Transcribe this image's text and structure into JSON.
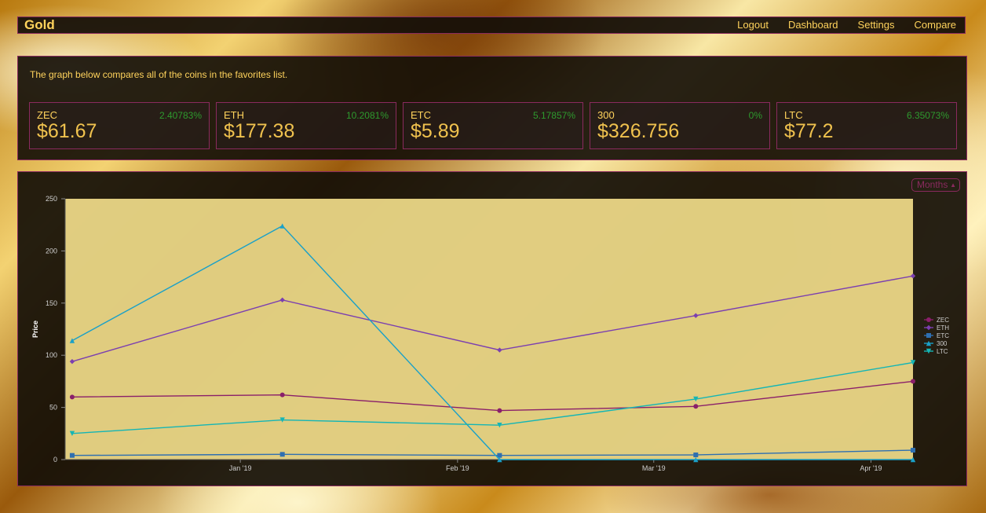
{
  "nav": {
    "brand": "Gold",
    "links": [
      "Logout",
      "Dashboard",
      "Settings",
      "Compare"
    ]
  },
  "intro": "The graph below compares all of the coins in the favorites list.",
  "tiles": [
    {
      "symbol": "ZEC",
      "change": "2.40783%",
      "price": "$61.67"
    },
    {
      "symbol": "ETH",
      "change": "10.2081%",
      "price": "$177.38"
    },
    {
      "symbol": "ETC",
      "change": "5.17857%",
      "price": "$5.89"
    },
    {
      "symbol": "300",
      "change": "0%",
      "price": "$326.756"
    },
    {
      "symbol": "LTC",
      "change": "6.35073%",
      "price": "$77.2"
    }
  ],
  "range_select": {
    "value": "Months"
  },
  "colors": {
    "accent": "#ffd35c",
    "border": "#8a2a5e",
    "positive": "#2e9a2e",
    "plot_bg": "#f1dc8a"
  },
  "chart_data": {
    "type": "line",
    "ylabel": "Price",
    "ylim": [
      0,
      250
    ],
    "yticks": [
      0,
      50,
      100,
      150,
      200,
      250
    ],
    "xticks": [
      {
        "label": "Jan '19",
        "x": "2019-01-01"
      },
      {
        "label": "Feb '19",
        "x": "2019-02-01"
      },
      {
        "label": "Mar '19",
        "x": "2019-03-01"
      },
      {
        "label": "Apr '19",
        "x": "2019-04-01"
      }
    ],
    "xlim": [
      "2018-12-07",
      "2019-04-07"
    ],
    "x": [
      "2018-12-08",
      "2019-01-07",
      "2019-02-07",
      "2019-03-07",
      "2019-04-07"
    ],
    "grid": false,
    "legend": "right",
    "series": [
      {
        "name": "ZEC",
        "color": "#8a1f6a",
        "marker": "circle",
        "values": [
          60,
          62,
          47,
          51,
          75
        ]
      },
      {
        "name": "ETH",
        "color": "#7b3fb0",
        "marker": "diamond",
        "values": [
          94,
          153,
          105,
          138,
          176
        ]
      },
      {
        "name": "ETC",
        "color": "#2f6fb0",
        "marker": "square",
        "values": [
          4,
          5,
          4,
          4.5,
          9
        ]
      },
      {
        "name": "300",
        "color": "#1aa0c8",
        "marker": "triangle-up",
        "values": [
          114,
          224,
          0,
          0,
          0
        ]
      },
      {
        "name": "LTC",
        "color": "#14b5b5",
        "marker": "triangle-down",
        "values": [
          25,
          38,
          33,
          58,
          93
        ]
      }
    ]
  }
}
